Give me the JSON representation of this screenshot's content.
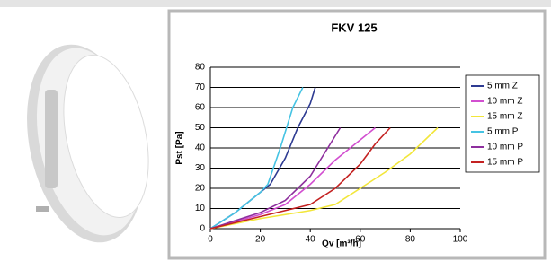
{
  "chart_data": {
    "type": "line",
    "title": "FKV 125",
    "x_label": "Qv [m³/h]",
    "y_label": "Pst [Pa]",
    "xlim": [
      0,
      100
    ],
    "xticks": [
      0,
      20,
      40,
      60,
      80,
      100
    ],
    "ylim": [
      0,
      80
    ],
    "yticks": [
      0,
      10,
      20,
      30,
      40,
      50,
      60,
      70,
      80
    ],
    "grid": true,
    "legend": "right",
    "series": [
      {
        "name": "5 mm Z",
        "color": "#2e3b92",
        "x": [
          0,
          10,
          20,
          24,
          30,
          35,
          40,
          42
        ],
        "values": [
          0,
          8,
          18,
          22,
          35,
          50,
          62,
          70
        ]
      },
      {
        "name": "10 mm Z",
        "color": "#d24fd0",
        "x": [
          0,
          20,
          30,
          40,
          50,
          60,
          66
        ],
        "values": [
          0,
          7,
          12,
          22,
          34,
          44,
          50
        ]
      },
      {
        "name": "15 mm Z",
        "color": "#f2e63a",
        "x": [
          0,
          20,
          40,
          50,
          60,
          70,
          80,
          91
        ],
        "values": [
          0,
          5,
          9,
          12,
          20,
          28,
          37,
          50
        ]
      },
      {
        "name": "5 mm P",
        "color": "#45c3e3",
        "x": [
          0,
          10,
          20,
          23,
          28,
          33,
          37
        ],
        "values": [
          0,
          8,
          18,
          22,
          40,
          60,
          70
        ]
      },
      {
        "name": "10 mm P",
        "color": "#8e2f9e",
        "x": [
          0,
          20,
          30,
          40,
          46,
          52
        ],
        "values": [
          0,
          8,
          14,
          26,
          38,
          50
        ]
      },
      {
        "name": "15 mm P",
        "color": "#c42222",
        "x": [
          0,
          20,
          40,
          50,
          60,
          66,
          72
        ],
        "values": [
          0,
          6,
          12,
          20,
          32,
          42,
          50
        ]
      }
    ]
  }
}
